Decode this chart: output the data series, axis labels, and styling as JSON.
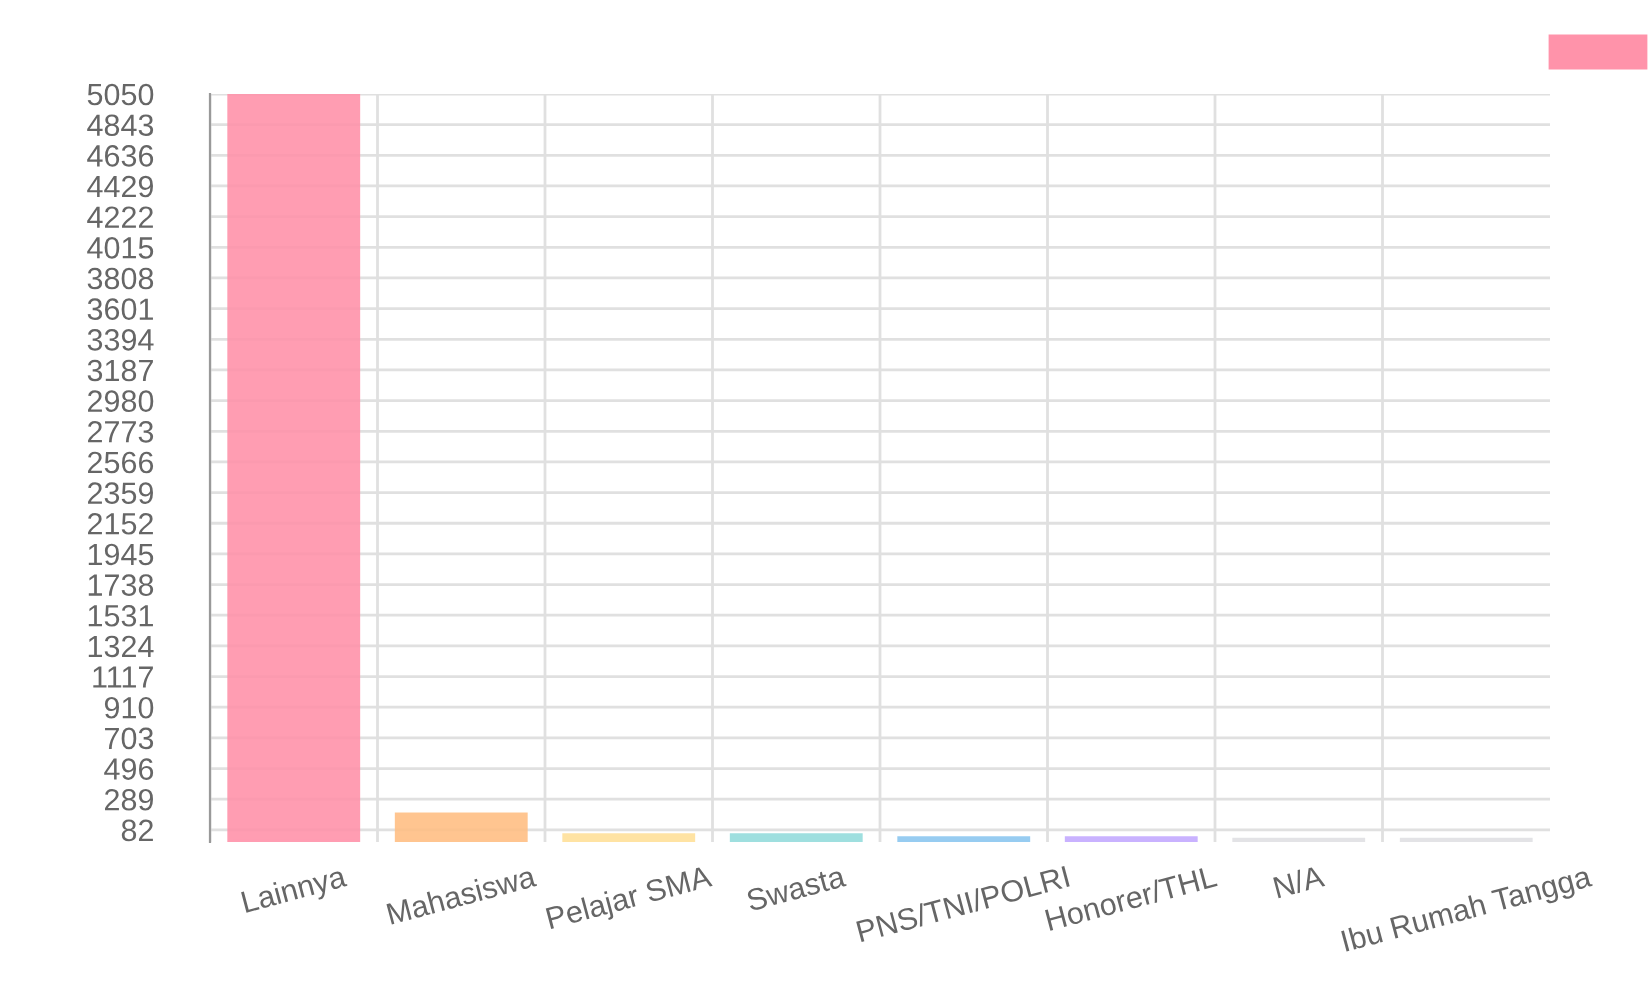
{
  "chart_data": {
    "type": "bar",
    "categories": [
      "Lainnya",
      "Mahasiswa",
      "Pelajar SMA",
      "Swasta",
      "PNS/TNI/POLRI",
      "Honorer/THL",
      "N/A",
      "Ibu Rumah Tangga"
    ],
    "values": [
      5050,
      180,
      40,
      40,
      20,
      20,
      10,
      10
    ],
    "colors": [
      "#ff93aa",
      "#ffbf85",
      "#ffe09a",
      "#95dcdc",
      "#8cc7f0",
      "#c4aaff",
      "#e0e1e4",
      "#e0e1e4"
    ],
    "ylim": [
      0,
      5050
    ],
    "yticks": [
      82,
      289,
      496,
      703,
      910,
      1117,
      1324,
      1531,
      1738,
      1945,
      2152,
      2359,
      2566,
      2773,
      2980,
      3187,
      3394,
      3601,
      3808,
      4015,
      4222,
      4429,
      4636,
      4843,
      5050
    ],
    "grid": true
  }
}
